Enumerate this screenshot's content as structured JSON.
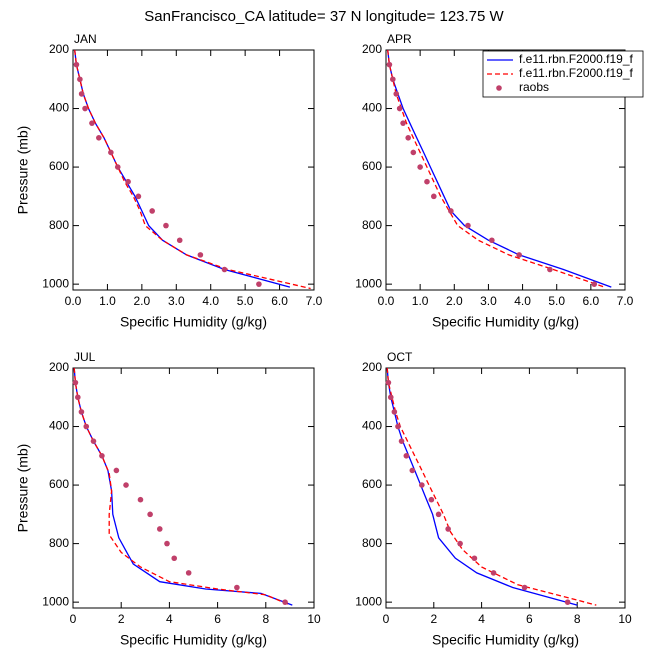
{
  "title": "SanFrancisco_CA  latitude= 37 N longitude= 123.75 W",
  "chart_data": [
    {
      "type": "line",
      "title": "JAN",
      "xlabel": "Specific Humidity (g/kg)",
      "ylabel": "Pressure (mb)",
      "xlim": [
        0,
        7
      ],
      "ylim": [
        200,
        1020
      ],
      "y_inverted": true,
      "xticks": [
        {
          "value": 0,
          "label": "0.0"
        },
        {
          "value": 1,
          "label": "1.0"
        },
        {
          "value": 2,
          "label": "2.0"
        },
        {
          "value": 3,
          "label": "3.0"
        },
        {
          "value": 4,
          "label": "4.0"
        },
        {
          "value": 5,
          "label": "5.0"
        },
        {
          "value": 6,
          "label": "6.0"
        },
        {
          "value": 7,
          "label": "7.0"
        }
      ],
      "yticks": [
        200,
        400,
        600,
        800,
        1000
      ],
      "series": [
        {
          "color": "#0000ff",
          "mode": "line",
          "dash": false,
          "x": [
            0.05,
            0.1,
            0.2,
            0.3,
            0.45,
            0.65,
            0.9,
            1.1,
            1.3,
            1.55,
            1.8,
            2.0,
            2.2,
            2.6,
            3.3,
            4.4,
            6.3
          ],
          "values": [
            200,
            250,
            300,
            350,
            400,
            450,
            500,
            550,
            600,
            650,
            700,
            750,
            800,
            850,
            900,
            950,
            1010
          ]
        },
        {
          "color": "#ff0000",
          "mode": "line",
          "dash": true,
          "x": [
            0.05,
            0.1,
            0.2,
            0.3,
            0.45,
            0.65,
            0.9,
            1.1,
            1.3,
            1.5,
            1.75,
            1.95,
            2.1,
            2.6,
            3.3,
            4.5,
            6.9
          ],
          "values": [
            200,
            250,
            300,
            350,
            400,
            450,
            500,
            550,
            600,
            650,
            700,
            750,
            800,
            850,
            900,
            950,
            1015
          ]
        },
        {
          "color": "#c0406a",
          "mode": "markers",
          "x": [
            0.1,
            0.2,
            0.25,
            0.35,
            0.55,
            0.75,
            1.1,
            1.3,
            1.6,
            1.9,
            2.3,
            2.7,
            3.1,
            3.7,
            4.4,
            5.4
          ],
          "values": [
            250,
            300,
            350,
            400,
            450,
            500,
            550,
            600,
            650,
            700,
            750,
            800,
            850,
            900,
            950,
            1000
          ]
        }
      ]
    },
    {
      "type": "line",
      "title": "APR",
      "xlabel": "Specific Humidity (g/kg)",
      "xlim": [
        0,
        7
      ],
      "ylim": [
        200,
        1020
      ],
      "y_inverted": true,
      "legend": "upper right",
      "xticks": [
        {
          "value": 0,
          "label": "0.0"
        },
        {
          "value": 1,
          "label": "1.0"
        },
        {
          "value": 2,
          "label": "2.0"
        },
        {
          "value": 3,
          "label": "3.0"
        },
        {
          "value": 4,
          "label": "4.0"
        },
        {
          "value": 5,
          "label": "5.0"
        },
        {
          "value": 6,
          "label": "6.0"
        },
        {
          "value": 7,
          "label": "7.0"
        }
      ],
      "yticks": [
        200,
        400,
        600,
        800,
        1000
      ],
      "series": [
        {
          "name": "f.e11.rbn.F2000.f19_f",
          "color": "#0000ff",
          "mode": "line",
          "dash": false,
          "x": [
            0.05,
            0.1,
            0.2,
            0.35,
            0.5,
            0.7,
            0.9,
            1.1,
            1.3,
            1.5,
            1.7,
            1.9,
            2.3,
            3.0,
            3.9,
            5.2,
            6.6
          ],
          "values": [
            200,
            250,
            300,
            350,
            400,
            450,
            500,
            550,
            600,
            650,
            700,
            750,
            800,
            850,
            900,
            950,
            1010
          ]
        },
        {
          "name": "f.e11.rbn.F2000.f19_f",
          "color": "#ff0000",
          "mode": "line",
          "dash": true,
          "x": [
            0.05,
            0.1,
            0.2,
            0.3,
            0.45,
            0.6,
            0.8,
            1.0,
            1.2,
            1.4,
            1.6,
            1.85,
            2.1,
            2.7,
            3.6,
            4.9,
            6.4
          ],
          "values": [
            200,
            250,
            300,
            350,
            400,
            450,
            500,
            550,
            600,
            650,
            700,
            750,
            800,
            850,
            900,
            950,
            1010
          ]
        },
        {
          "name": "raobs",
          "color": "#c0406a",
          "mode": "markers",
          "x": [
            0.1,
            0.2,
            0.3,
            0.4,
            0.5,
            0.65,
            0.8,
            1.0,
            1.2,
            1.4,
            1.9,
            2.4,
            3.1,
            3.9,
            4.8,
            6.1
          ],
          "values": [
            250,
            300,
            350,
            400,
            450,
            500,
            550,
            600,
            650,
            700,
            750,
            800,
            850,
            900,
            950,
            1000
          ]
        }
      ]
    },
    {
      "type": "line",
      "title": "JUL",
      "xlabel": "Specific Humidity (g/kg)",
      "ylabel": "Pressure (mb)",
      "xlim": [
        0,
        10
      ],
      "ylim": [
        200,
        1020
      ],
      "y_inverted": true,
      "xticks": [
        0,
        2,
        4,
        6,
        8,
        10
      ],
      "yticks": [
        200,
        400,
        600,
        800,
        1000
      ],
      "series": [
        {
          "color": "#0000ff",
          "mode": "line",
          "dash": false,
          "x": [
            0.05,
            0.1,
            0.2,
            0.35,
            0.55,
            0.85,
            1.2,
            1.45,
            1.6,
            1.65,
            1.9,
            2.5,
            3.6,
            5.5,
            7.8,
            9.1
          ],
          "values": [
            200,
            250,
            300,
            350,
            400,
            450,
            500,
            550,
            620,
            700,
            780,
            870,
            930,
            955,
            970,
            1010
          ]
        },
        {
          "color": "#ff0000",
          "mode": "line",
          "dash": true,
          "x": [
            0.05,
            0.1,
            0.2,
            0.35,
            0.55,
            0.85,
            1.2,
            1.5,
            1.6,
            1.5,
            1.5,
            2.0,
            2.8,
            4.0,
            6.0,
            8.0,
            9.0
          ],
          "values": [
            200,
            250,
            300,
            350,
            400,
            450,
            500,
            560,
            620,
            700,
            770,
            830,
            880,
            930,
            955,
            975,
            1010
          ]
        },
        {
          "color": "#c0406a",
          "mode": "markers",
          "x": [
            0.1,
            0.2,
            0.35,
            0.55,
            0.85,
            1.2,
            1.8,
            2.2,
            2.8,
            3.2,
            3.6,
            3.9,
            4.2,
            4.8,
            6.8,
            8.8
          ],
          "values": [
            250,
            300,
            350,
            400,
            450,
            500,
            550,
            600,
            650,
            700,
            750,
            800,
            850,
            900,
            950,
            1000
          ]
        }
      ]
    },
    {
      "type": "line",
      "title": "OCT",
      "xlabel": "Specific Humidity (g/kg)",
      "xlim": [
        0,
        10
      ],
      "ylim": [
        200,
        1020
      ],
      "y_inverted": true,
      "xticks": [
        0,
        2,
        4,
        6,
        8,
        10
      ],
      "yticks": [
        200,
        400,
        600,
        800,
        1000
      ],
      "series": [
        {
          "color": "#0000ff",
          "mode": "line",
          "dash": false,
          "x": [
            0.05,
            0.1,
            0.2,
            0.35,
            0.5,
            0.7,
            0.95,
            1.2,
            1.45,
            1.7,
            1.95,
            2.2,
            2.9,
            3.8,
            5.3,
            8.0
          ],
          "values": [
            200,
            250,
            300,
            350,
            400,
            450,
            500,
            550,
            600,
            650,
            700,
            780,
            850,
            900,
            950,
            1010
          ]
        },
        {
          "color": "#ff0000",
          "mode": "line",
          "dash": true,
          "x": [
            0.05,
            0.1,
            0.25,
            0.4,
            0.6,
            0.9,
            1.2,
            1.5,
            1.8,
            2.1,
            2.4,
            2.7,
            3.2,
            4.0,
            5.5,
            8.8
          ],
          "values": [
            200,
            250,
            300,
            350,
            400,
            450,
            500,
            550,
            600,
            650,
            700,
            760,
            820,
            880,
            940,
            1010
          ]
        },
        {
          "color": "#c0406a",
          "mode": "markers",
          "x": [
            0.1,
            0.2,
            0.35,
            0.5,
            0.65,
            0.85,
            1.1,
            1.5,
            1.9,
            2.2,
            2.6,
            3.1,
            3.7,
            4.5,
            5.8,
            7.6
          ],
          "values": [
            250,
            300,
            350,
            400,
            450,
            500,
            550,
            600,
            650,
            700,
            750,
            800,
            850,
            900,
            950,
            1000
          ]
        }
      ]
    }
  ]
}
